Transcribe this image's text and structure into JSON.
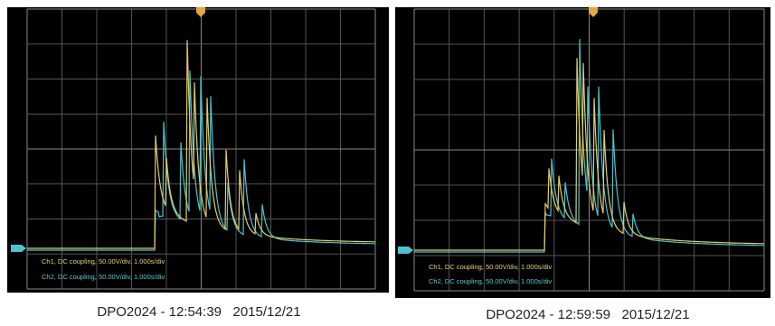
{
  "panels": [
    {
      "legend": [
        "Ch1, DC coupling, 50.00V/div, 1.000s/div",
        "Ch2, DC coupling, 50.00V/div, 1.000s/div"
      ],
      "caption": "DPO2024 - 12:54:39   2015/12/21"
    },
    {
      "legend": [
        "Ch1, DC coupling, 50.00V/div, 1.000s/div",
        "Ch2, DC coupling, 50.00V/div, 1.000s/div"
      ],
      "caption": "DPO2024 - 12:59:59   2015/12/21"
    }
  ]
}
